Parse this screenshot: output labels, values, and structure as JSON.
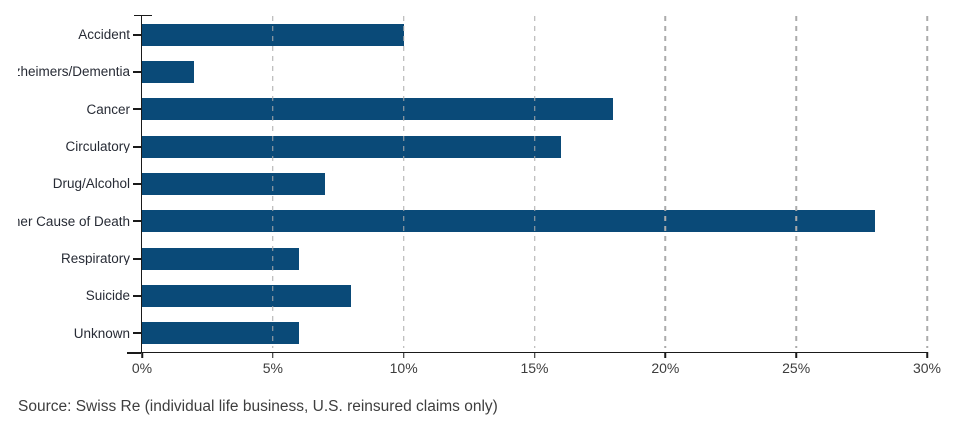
{
  "chart_data": {
    "type": "bar",
    "orientation": "horizontal",
    "title": "",
    "xlabel": "",
    "ylabel": "",
    "categories": [
      "Accident",
      "Alzheimers/Dementia",
      "Cancer",
      "Circulatory",
      "Drug/Alcohol",
      "Other Cause of Death",
      "Respiratory",
      "Suicide",
      "Unknown"
    ],
    "values": [
      10,
      2,
      18,
      16,
      7,
      28,
      6,
      8,
      6
    ],
    "unit": "%",
    "xlim": [
      0,
      30
    ],
    "xticks": [
      0,
      5,
      10,
      15,
      20,
      25,
      30
    ],
    "xtick_labels": [
      "0%",
      "5%",
      "10%",
      "15%",
      "20%",
      "25%",
      "30%"
    ],
    "grid": "vertical-dashed",
    "legend": "none",
    "bar_color": "#0a4a78"
  },
  "source_note": "Source: Swiss Re (individual life business, U.S. reinsured claims only)",
  "colors": {
    "bar": "#0a4a78",
    "grid": "#ababab",
    "axis": "#1a1a1a",
    "label": "#272b35",
    "tick": "#3d3d3d",
    "source": "#3e3e3e",
    "bg": "#ffffff"
  }
}
